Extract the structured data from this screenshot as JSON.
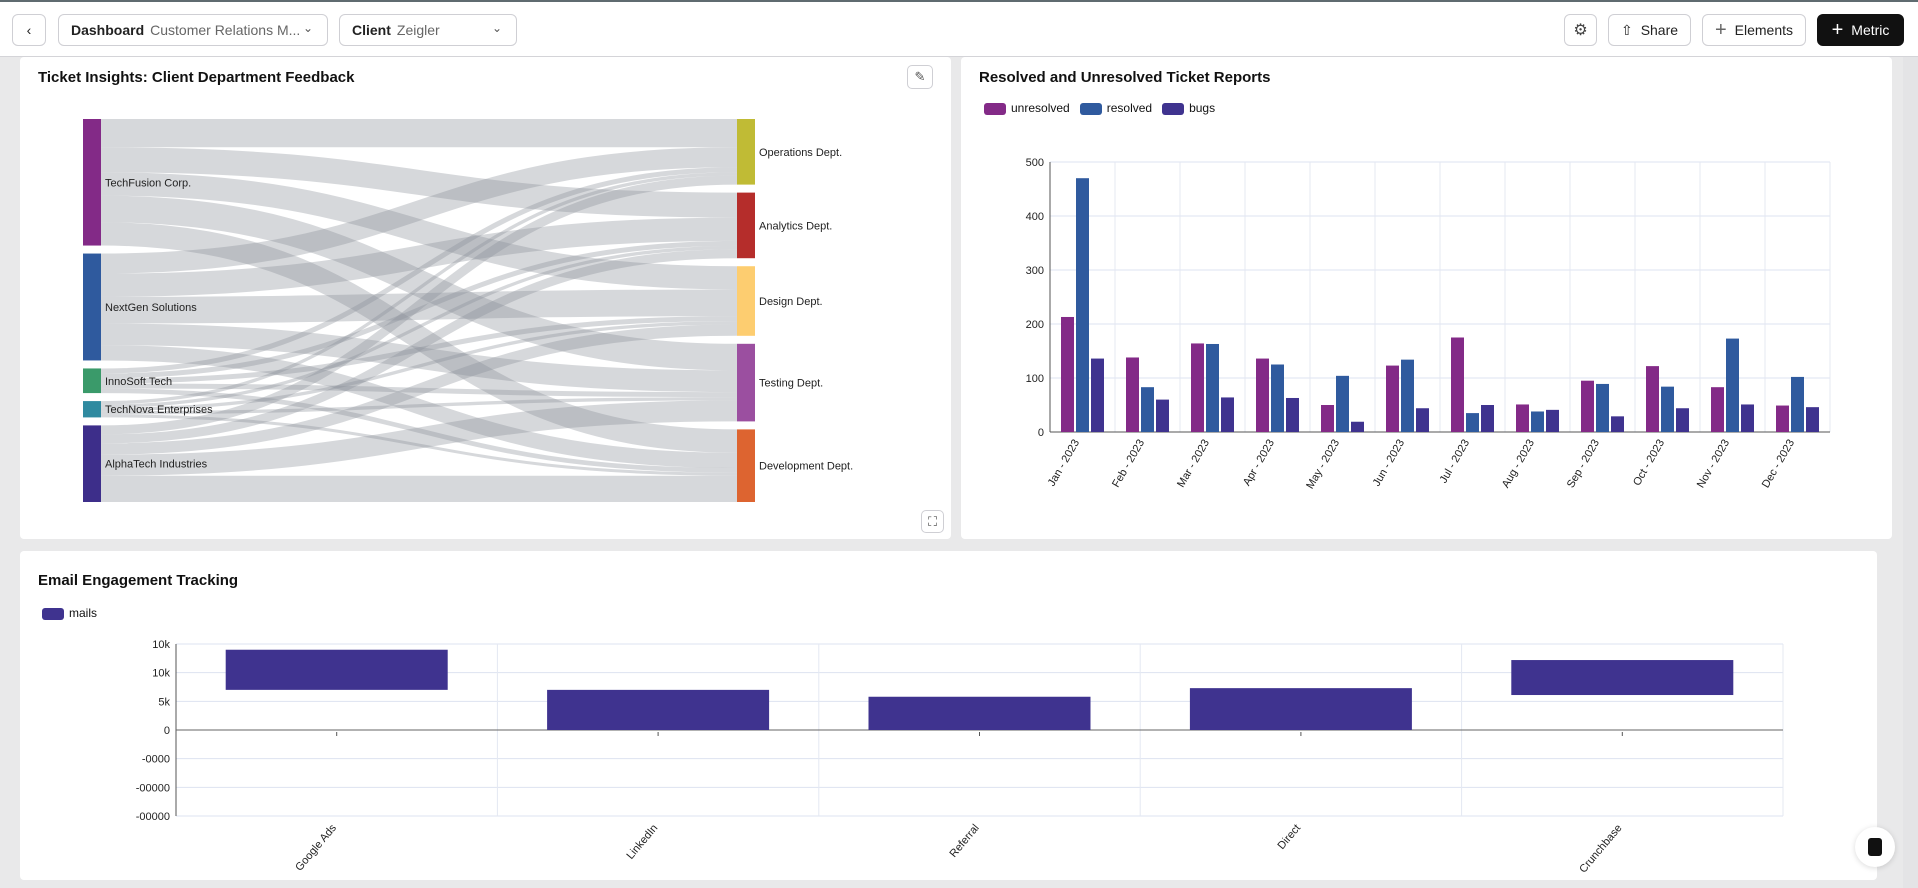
{
  "topbar": {
    "back_icon": "chevron-left-icon",
    "dashboard_label": "Dashboard",
    "dashboard_value": "Customer Relations M...",
    "client_label": "Client",
    "client_value": "Zeigler",
    "settings_icon": "gear-icon",
    "share_label": "Share",
    "elements_label": "Elements",
    "metric_label": "Metric"
  },
  "sankey_panel": {
    "title": "Ticket Insights: Client Department Feedback",
    "chart_data": {
      "type": "sankey",
      "sources": [
        {
          "name": "TechFusion Corp.",
          "color": "#832a87"
        },
        {
          "name": "NextGen Solutions",
          "color": "#2f5a9e"
        },
        {
          "name": "InnoSoft Tech",
          "color": "#3a9a6a"
        },
        {
          "name": "TechNova Enterprises",
          "color": "#2f8aa0"
        },
        {
          "name": "AlphaTech Industries",
          "color": "#3d2e8a"
        }
      ],
      "targets": [
        {
          "name": "Operations Dept.",
          "color": "#c0bb35"
        },
        {
          "name": "Analytics Dept.",
          "color": "#b52d2b"
        },
        {
          "name": "Design Dept.",
          "color": "#fdcd70"
        },
        {
          "name": "Testing Dept.",
          "color": "#9b4fa0"
        },
        {
          "name": "Development Dept.",
          "color": "#dd6430"
        }
      ],
      "flows": [
        [
          85,
          75,
          70,
          80,
          70
        ],
        [
          60,
          70,
          80,
          65,
          46
        ],
        [
          15,
          15,
          15,
          15,
          14
        ],
        [
          10,
          10,
          10,
          10,
          9
        ],
        [
          27,
          27,
          34,
          63,
          79
        ]
      ]
    }
  },
  "tickets_panel": {
    "title": "Resolved and Unresolved Ticket Reports",
    "chart_data": {
      "type": "bar",
      "categories": [
        "Jan - 2023",
        "Feb - 2023",
        "Mar - 2023",
        "Apr - 2023",
        "May - 2023",
        "Jun - 2023",
        "Jul - 2023",
        "Aug - 2023",
        "Sep - 2023",
        "Oct - 2023",
        "Nov - 2023",
        "Dec - 2023"
      ],
      "series": [
        {
          "name": "unresolved",
          "color": "#832a87",
          "values": [
            213,
            138,
            164,
            136,
            50,
            123,
            175,
            51,
            95,
            122,
            83,
            49
          ]
        },
        {
          "name": "resolved",
          "color": "#2f5a9e",
          "values": [
            470,
            83,
            163,
            125,
            104,
            134,
            35,
            38,
            89,
            84,
            173,
            102
          ]
        },
        {
          "name": "bugs",
          "color": "#3f338f",
          "values": [
            136,
            60,
            64,
            63,
            19,
            44,
            50,
            41,
            29,
            44,
            51,
            46
          ]
        }
      ],
      "yticks": [
        "0",
        "100",
        "200",
        "300",
        "400",
        "500"
      ],
      "ylim": [
        0,
        500
      ],
      "grid": true,
      "legend": "top-left"
    }
  },
  "email_panel": {
    "title": "Email Engagement Tracking",
    "chart_data": {
      "type": "bar",
      "categories": [
        "Google Ads",
        "LinkedIn",
        "Referral",
        "Direct",
        "Crunchbase"
      ],
      "series": [
        {
          "name": "mails",
          "color": "#3f338f",
          "ranges": [
            [
              7000,
              14000
            ],
            [
              0,
              7000
            ],
            [
              0,
              5800
            ],
            [
              0,
              7300
            ],
            [
              6100,
              12200
            ]
          ]
        }
      ],
      "yticks": [
        "10k",
        "10k",
        "5k",
        "0",
        "-0000",
        "-00000",
        "-00000"
      ],
      "ylim": [
        -15000,
        15000
      ],
      "grid": true,
      "legend": "top-left"
    }
  },
  "chat_icon": "chat-bubble-icon"
}
